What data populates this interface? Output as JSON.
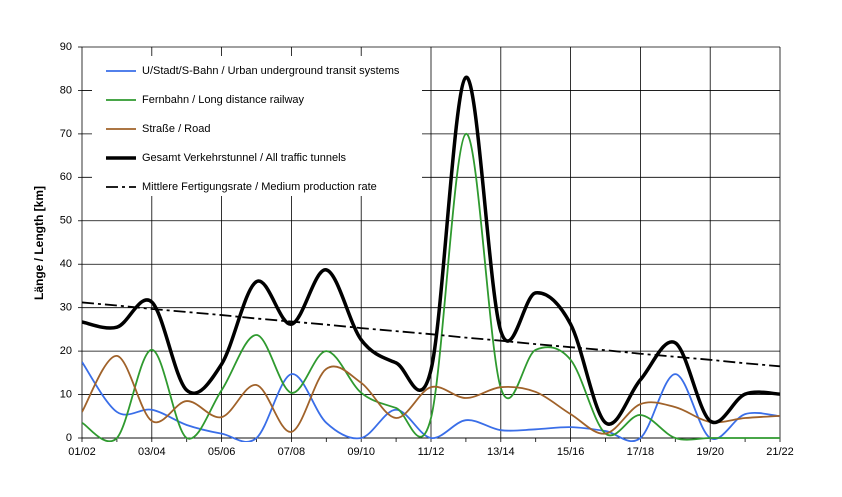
{
  "chart_data": {
    "type": "line",
    "ylabel": "Länge / Length [km]",
    "categories": [
      "01/02",
      null,
      "03/04",
      null,
      "05/06",
      null,
      "07/08",
      null,
      "09/10",
      null,
      "11/12",
      null,
      "13/14",
      null,
      "15/16",
      null,
      "17/18",
      null,
      "19/20",
      null,
      "21/22"
    ],
    "ylim": [
      0,
      90
    ],
    "yticks": [
      0,
      10,
      20,
      30,
      40,
      50,
      60,
      70,
      80,
      90
    ],
    "grid": true,
    "series": [
      {
        "name": "U/Stadt/S-Bahn / Urban underground transit systems",
        "color": "#3a6ee8",
        "linewidth": 1.8,
        "linestyle": "solid",
        "values": [
          17.5,
          6,
          6.5,
          3,
          1,
          0,
          14.7,
          3.5,
          0,
          6.5,
          0,
          4.1,
          1.8,
          2,
          2.5,
          1.6,
          0,
          14.7,
          0,
          5.5,
          5
        ]
      },
      {
        "name": "Fernbahn / Long distance railway",
        "color": "#2f9a2f",
        "linewidth": 1.8,
        "linestyle": "solid",
        "values": [
          3.5,
          0,
          20.3,
          0,
          11,
          23.7,
          10.4,
          20,
          10.4,
          6.9,
          4.6,
          70,
          11.5,
          20.3,
          18,
          1,
          5.3,
          0,
          0,
          0,
          0
        ]
      },
      {
        "name": "Straße / Road",
        "color": "#a0622a",
        "linewidth": 1.8,
        "linestyle": "solid",
        "values": [
          6,
          18.9,
          3.9,
          8.5,
          4.8,
          12.2,
          1.4,
          15.9,
          12.7,
          4.6,
          11.7,
          9.2,
          11.7,
          10.6,
          5.5,
          1,
          7.8,
          7.1,
          3.7,
          4.6,
          5.1
        ]
      },
      {
        "name": "Gesamt Verkehrstunnel / All traffic tunnels",
        "color": "#000000",
        "linewidth": 3.5,
        "linestyle": "solid",
        "values": [
          26.7,
          25.5,
          31.3,
          11,
          17,
          36,
          26.2,
          38.7,
          22.6,
          17.3,
          15.7,
          83,
          24.6,
          33.4,
          26.2,
          3.5,
          13.4,
          21.9,
          3.9,
          10.1,
          10.1
        ]
      },
      {
        "name": "Mittlere Fertigungsrate / Medium production rate",
        "color": "#000000",
        "linewidth": 1.8,
        "linestyle": "dashdot",
        "values": [
          31.2,
          30.5,
          29.7,
          29.0,
          28.3,
          27.5,
          26.8,
          26.1,
          25.3,
          24.6,
          23.9,
          23.1,
          22.4,
          21.6,
          20.9,
          20.2,
          19.4,
          18.7,
          18.0,
          17.2,
          16.5
        ]
      }
    ]
  }
}
